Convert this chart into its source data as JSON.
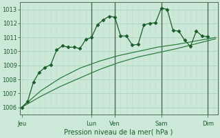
{
  "bg_color": "#cce8d8",
  "grid_color_h": "#aad4c0",
  "grid_color_v": "#c0ddd0",
  "line_color_dark": "#1a5c28",
  "line_color_mid": "#2e7d3e",
  "xlabel_text": "Pression niveau de la mer( hPa )",
  "ylim": [
    1005.5,
    1013.5
  ],
  "yticks": [
    1006,
    1007,
    1008,
    1009,
    1010,
    1011,
    1012,
    1013
  ],
  "xlim": [
    -2,
    202
  ],
  "x_day_labels": [
    "Jeu",
    "Lun",
    "Ven",
    "Sam",
    "Dim"
  ],
  "x_day_positions": [
    0,
    72,
    96,
    144,
    192
  ],
  "x_vlines": [
    72,
    96,
    144,
    192
  ],
  "vline_color": "#4a6a50",
  "series1_x": [
    0,
    6,
    12,
    18,
    24,
    30,
    36,
    42,
    48,
    54,
    60,
    66,
    72,
    78,
    84,
    90,
    96,
    102,
    108,
    114,
    120,
    126,
    132,
    138,
    144,
    150,
    156,
    162,
    168,
    174,
    180,
    186,
    192
  ],
  "series1_y": [
    1006.0,
    1006.4,
    1007.8,
    1008.5,
    1008.85,
    1009.05,
    1010.1,
    1010.4,
    1010.3,
    1010.3,
    1010.2,
    1010.85,
    1011.0,
    1011.9,
    1012.25,
    1012.5,
    1012.45,
    1011.1,
    1011.1,
    1010.45,
    1010.5,
    1011.9,
    1012.0,
    1012.05,
    1013.1,
    1013.0,
    1011.5,
    1011.45,
    1010.8,
    1010.35,
    1011.45,
    1011.1,
    1011.05
  ],
  "series2_x": [
    0,
    20,
    40,
    60,
    80,
    100,
    120,
    140,
    160,
    180,
    200
  ],
  "series2_y": [
    1006.0,
    1007.2,
    1008.1,
    1008.8,
    1009.3,
    1009.7,
    1010.0,
    1010.3,
    1010.5,
    1010.75,
    1011.0
  ],
  "series3_x": [
    0,
    20,
    40,
    60,
    80,
    100,
    120,
    140,
    160,
    180,
    200
  ],
  "series3_y": [
    1006.0,
    1006.8,
    1007.5,
    1008.1,
    1008.7,
    1009.2,
    1009.6,
    1009.9,
    1010.2,
    1010.55,
    1010.9
  ],
  "marker": "D",
  "marker_size": 2.5,
  "fontsize_tick": 6.0,
  "fontsize_label": 7.0
}
